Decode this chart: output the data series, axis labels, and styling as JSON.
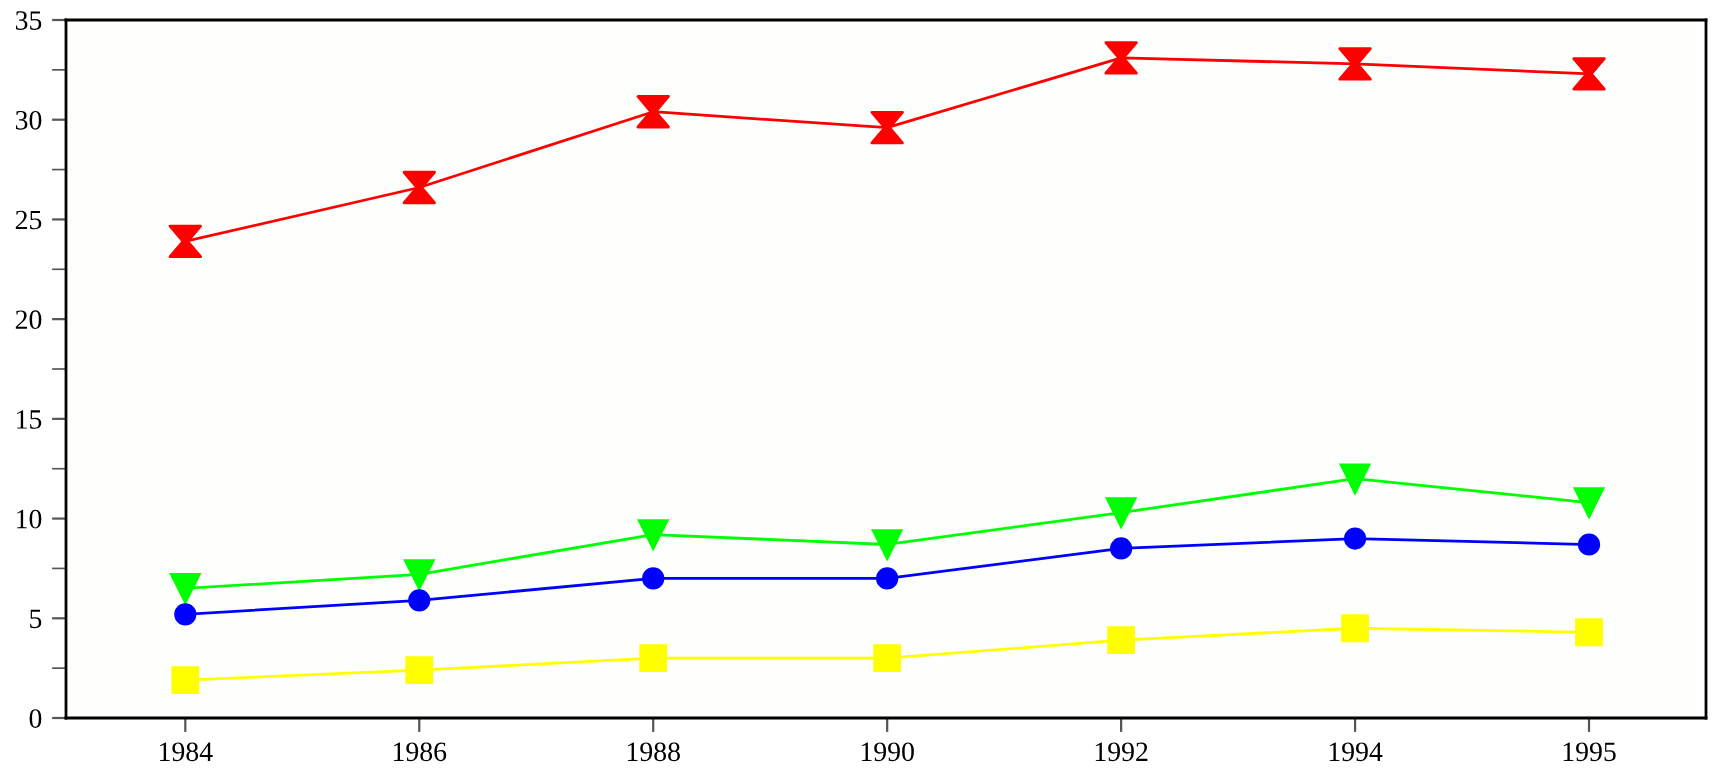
{
  "chart_data": {
    "type": "line",
    "categories": [
      "1984",
      "1986",
      "1988",
      "1990",
      "1992",
      "1994",
      "1995"
    ],
    "series": [
      {
        "color": "#ff0000",
        "marker": "cross",
        "values": [
          23.9,
          26.6,
          30.4,
          29.6,
          33.1,
          32.8,
          32.3
        ]
      },
      {
        "color": "#00ff00",
        "marker": "triangle",
        "values": [
          6.5,
          7.2,
          9.2,
          8.7,
          10.3,
          12.0,
          10.8
        ]
      },
      {
        "color": "#0000ff",
        "marker": "circle",
        "values": [
          5.2,
          5.9,
          7.0,
          7.0,
          8.5,
          9.0,
          8.7
        ]
      },
      {
        "color": "#ffff00",
        "marker": "square",
        "values": [
          1.9,
          2.4,
          3.0,
          3.0,
          3.9,
          4.5,
          4.3
        ]
      }
    ],
    "ylim": [
      0,
      35
    ],
    "yticks": [
      0,
      5,
      10,
      15,
      20,
      25,
      30,
      35
    ],
    "line_style": "solid"
  }
}
